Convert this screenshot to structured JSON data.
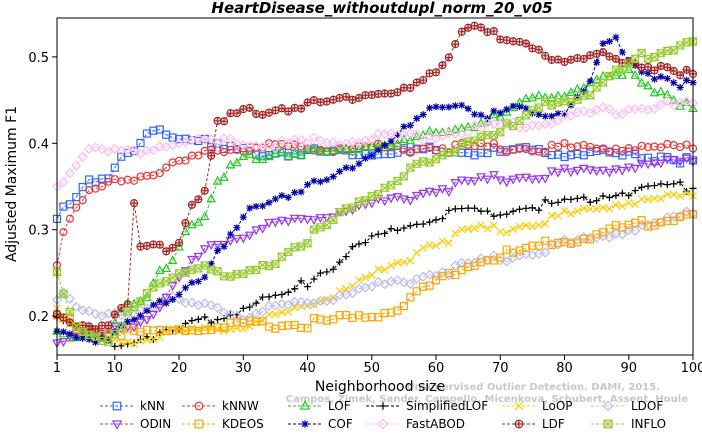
{
  "chart_data": {
    "type": "line",
    "title": "HeartDisease_withoutdupl_norm_20_v05",
    "xlabel": "Neighborhood size",
    "ylabel": "Adjusted Maximum F1",
    "xlim": [
      1,
      100
    ],
    "ylim": [
      0.155,
      0.545
    ],
    "xticks": [
      "1",
      "10",
      "20",
      "30",
      "40",
      "50",
      "60",
      "70",
      "80",
      "90",
      "100"
    ],
    "yticks": [
      "0.2",
      "0.3",
      "0.4",
      "0.5"
    ],
    "watermark": [
      "Campos, Zimek, Sander, Campello, Micenkova, Schubert, Assent, Houle",
      "Unsupervised Outlier Detection. DAMI, 2015."
    ],
    "series": [
      {
        "name": "kNN",
        "color": "#3366ff",
        "marker": "square",
        "anchors": [
          [
            1,
            0.31
          ],
          [
            2,
            0.325
          ],
          [
            3,
            0.33
          ],
          [
            5,
            0.35
          ],
          [
            6,
            0.36
          ],
          [
            8,
            0.36
          ],
          [
            10,
            0.37
          ],
          [
            11,
            0.38
          ],
          [
            13,
            0.39
          ],
          [
            15,
            0.41
          ],
          [
            18,
            0.415
          ],
          [
            20,
            0.41
          ],
          [
            22,
            0.405
          ],
          [
            24,
            0.41
          ],
          [
            25,
            0.395
          ],
          [
            30,
            0.39
          ],
          [
            40,
            0.39
          ],
          [
            50,
            0.39
          ],
          [
            60,
            0.39
          ],
          [
            70,
            0.39
          ],
          [
            80,
            0.39
          ],
          [
            90,
            0.385
          ],
          [
            95,
            0.385
          ],
          [
            100,
            0.38
          ]
        ]
      },
      {
        "name": "kNNW",
        "color": "#ee3333",
        "marker": "circle",
        "anchors": [
          [
            1,
            0.26
          ],
          [
            2,
            0.3
          ],
          [
            4,
            0.325
          ],
          [
            6,
            0.34
          ],
          [
            8,
            0.35
          ],
          [
            10,
            0.355
          ],
          [
            14,
            0.365
          ],
          [
            18,
            0.37
          ],
          [
            22,
            0.38
          ],
          [
            25,
            0.39
          ],
          [
            28,
            0.395
          ],
          [
            40,
            0.395
          ],
          [
            60,
            0.395
          ],
          [
            80,
            0.395
          ],
          [
            100,
            0.395
          ]
        ]
      },
      {
        "name": "LOF",
        "color": "#22cc22",
        "marker": "triangle",
        "anchors": [
          [
            1,
            0.18
          ],
          [
            3,
            0.175
          ],
          [
            5,
            0.18
          ],
          [
            8,
            0.18
          ],
          [
            10,
            0.19
          ],
          [
            12,
            0.21
          ],
          [
            15,
            0.22
          ],
          [
            17,
            0.25
          ],
          [
            19,
            0.27
          ],
          [
            21,
            0.3
          ],
          [
            24,
            0.32
          ],
          [
            26,
            0.35
          ],
          [
            28,
            0.37
          ],
          [
            30,
            0.38
          ],
          [
            35,
            0.39
          ],
          [
            40,
            0.39
          ],
          [
            45,
            0.39
          ],
          [
            50,
            0.4
          ],
          [
            55,
            0.4
          ],
          [
            60,
            0.41
          ],
          [
            65,
            0.42
          ],
          [
            70,
            0.43
          ],
          [
            75,
            0.45
          ],
          [
            80,
            0.46
          ],
          [
            85,
            0.47
          ],
          [
            90,
            0.48
          ],
          [
            95,
            0.46
          ],
          [
            100,
            0.44
          ]
        ]
      },
      {
        "name": "SimplifiedLOF",
        "color": "#000000",
        "marker": "plus",
        "anchors": [
          [
            1,
            0.2
          ],
          [
            3,
            0.19
          ],
          [
            5,
            0.18
          ],
          [
            8,
            0.175
          ],
          [
            10,
            0.17
          ],
          [
            14,
            0.175
          ],
          [
            18,
            0.18
          ],
          [
            22,
            0.19
          ],
          [
            26,
            0.2
          ],
          [
            30,
            0.21
          ],
          [
            34,
            0.22
          ],
          [
            38,
            0.23
          ],
          [
            42,
            0.25
          ],
          [
            46,
            0.27
          ],
          [
            50,
            0.29
          ],
          [
            54,
            0.3
          ],
          [
            58,
            0.31
          ],
          [
            62,
            0.32
          ],
          [
            66,
            0.32
          ],
          [
            70,
            0.32
          ],
          [
            74,
            0.325
          ],
          [
            78,
            0.33
          ],
          [
            82,
            0.335
          ],
          [
            86,
            0.34
          ],
          [
            90,
            0.345
          ],
          [
            95,
            0.35
          ],
          [
            100,
            0.35
          ]
        ]
      },
      {
        "name": "LoOP",
        "color": "#ffcc00",
        "marker": "x",
        "anchors": [
          [
            1,
            0.21
          ],
          [
            3,
            0.19
          ],
          [
            6,
            0.18
          ],
          [
            10,
            0.17
          ],
          [
            14,
            0.175
          ],
          [
            18,
            0.18
          ],
          [
            22,
            0.18
          ],
          [
            26,
            0.185
          ],
          [
            30,
            0.19
          ],
          [
            36,
            0.2
          ],
          [
            42,
            0.22
          ],
          [
            48,
            0.24
          ],
          [
            54,
            0.26
          ],
          [
            58,
            0.28
          ],
          [
            62,
            0.29
          ],
          [
            66,
            0.3
          ],
          [
            70,
            0.3
          ],
          [
            76,
            0.31
          ],
          [
            82,
            0.32
          ],
          [
            88,
            0.33
          ],
          [
            94,
            0.335
          ],
          [
            100,
            0.34
          ]
        ]
      },
      {
        "name": "LDOF",
        "color": "#bbbbee",
        "marker": "diamond",
        "anchors": [
          [
            1,
            0.22
          ],
          [
            2,
            0.23
          ],
          [
            4,
            0.21
          ],
          [
            6,
            0.2
          ],
          [
            10,
            0.2
          ],
          [
            14,
            0.21
          ],
          [
            18,
            0.22
          ],
          [
            22,
            0.21
          ],
          [
            26,
            0.21
          ],
          [
            30,
            0.2
          ],
          [
            36,
            0.21
          ],
          [
            42,
            0.22
          ],
          [
            48,
            0.23
          ],
          [
            54,
            0.24
          ],
          [
            60,
            0.25
          ],
          [
            66,
            0.26
          ],
          [
            72,
            0.27
          ],
          [
            78,
            0.28
          ],
          [
            84,
            0.29
          ],
          [
            90,
            0.3
          ],
          [
            96,
            0.31
          ],
          [
            100,
            0.32
          ]
        ]
      },
      {
        "name": "ODIN",
        "color": "#9933ee",
        "marker": "invtriangle",
        "anchors": [
          [
            1,
            0.17
          ],
          [
            4,
            0.18
          ],
          [
            8,
            0.18
          ],
          [
            12,
            0.19
          ],
          [
            15,
            0.2
          ],
          [
            18,
            0.22
          ],
          [
            20,
            0.24
          ],
          [
            22,
            0.26
          ],
          [
            25,
            0.28
          ],
          [
            28,
            0.29
          ],
          [
            32,
            0.3
          ],
          [
            38,
            0.31
          ],
          [
            44,
            0.32
          ],
          [
            50,
            0.33
          ],
          [
            56,
            0.34
          ],
          [
            62,
            0.35
          ],
          [
            70,
            0.36
          ],
          [
            78,
            0.365
          ],
          [
            86,
            0.37
          ],
          [
            92,
            0.375
          ],
          [
            100,
            0.38
          ]
        ]
      },
      {
        "name": "KDEOS",
        "color": "#ffa500",
        "marker": "square",
        "anchors": [
          [
            1,
            0.2
          ],
          [
            4,
            0.19
          ],
          [
            8,
            0.18
          ],
          [
            12,
            0.18
          ],
          [
            16,
            0.18
          ],
          [
            20,
            0.185
          ],
          [
            26,
            0.185
          ],
          [
            32,
            0.19
          ],
          [
            38,
            0.19
          ],
          [
            44,
            0.195
          ],
          [
            50,
            0.2
          ],
          [
            54,
            0.21
          ],
          [
            58,
            0.23
          ],
          [
            62,
            0.25
          ],
          [
            66,
            0.26
          ],
          [
            70,
            0.27
          ],
          [
            76,
            0.28
          ],
          [
            82,
            0.29
          ],
          [
            88,
            0.3
          ],
          [
            94,
            0.31
          ],
          [
            100,
            0.32
          ]
        ]
      },
      {
        "name": "COF",
        "color": "#0000aa",
        "marker": "star",
        "anchors": [
          [
            1,
            0.18
          ],
          [
            3,
            0.18
          ],
          [
            5,
            0.175
          ],
          [
            8,
            0.175
          ],
          [
            10,
            0.18
          ],
          [
            12,
            0.19
          ],
          [
            14,
            0.2
          ],
          [
            16,
            0.21
          ],
          [
            18,
            0.22
          ],
          [
            20,
            0.23
          ],
          [
            22,
            0.24
          ],
          [
            24,
            0.25
          ],
          [
            26,
            0.27
          ],
          [
            28,
            0.29
          ],
          [
            30,
            0.31
          ],
          [
            32,
            0.33
          ],
          [
            36,
            0.34
          ],
          [
            40,
            0.35
          ],
          [
            44,
            0.36
          ],
          [
            48,
            0.38
          ],
          [
            52,
            0.4
          ],
          [
            56,
            0.42
          ],
          [
            60,
            0.44
          ],
          [
            64,
            0.445
          ],
          [
            68,
            0.43
          ],
          [
            72,
            0.44
          ],
          [
            76,
            0.43
          ],
          [
            80,
            0.44
          ],
          [
            84,
            0.47
          ],
          [
            86,
            0.51
          ],
          [
            88,
            0.52
          ],
          [
            90,
            0.49
          ],
          [
            94,
            0.48
          ],
          [
            98,
            0.47
          ],
          [
            100,
            0.47
          ]
        ]
      },
      {
        "name": "FastABOD",
        "color": "#ffbbee",
        "marker": "diamond",
        "anchors": [
          [
            1,
            0.35
          ],
          [
            3,
            0.37
          ],
          [
            5,
            0.39
          ],
          [
            8,
            0.39
          ],
          [
            12,
            0.39
          ],
          [
            16,
            0.395
          ],
          [
            20,
            0.4
          ],
          [
            24,
            0.4
          ],
          [
            30,
            0.4
          ],
          [
            40,
            0.4
          ],
          [
            50,
            0.405
          ],
          [
            60,
            0.41
          ],
          [
            70,
            0.42
          ],
          [
            80,
            0.43
          ],
          [
            90,
            0.44
          ],
          [
            100,
            0.445
          ]
        ]
      },
      {
        "name": "LDF",
        "color": "#aa2222",
        "marker": "circleplus",
        "anchors": [
          [
            1,
            0.2
          ],
          [
            4,
            0.19
          ],
          [
            8,
            0.19
          ],
          [
            10,
            0.2
          ],
          [
            12,
            0.21
          ],
          [
            13,
            0.33
          ],
          [
            14,
            0.28
          ],
          [
            16,
            0.28
          ],
          [
            18,
            0.28
          ],
          [
            20,
            0.29
          ],
          [
            22,
            0.33
          ],
          [
            24,
            0.35
          ],
          [
            26,
            0.42
          ],
          [
            28,
            0.43
          ],
          [
            30,
            0.435
          ],
          [
            35,
            0.44
          ],
          [
            40,
            0.445
          ],
          [
            45,
            0.45
          ],
          [
            50,
            0.46
          ],
          [
            55,
            0.46
          ],
          [
            58,
            0.47
          ],
          [
            60,
            0.48
          ],
          [
            62,
            0.5
          ],
          [
            64,
            0.53
          ],
          [
            66,
            0.54
          ],
          [
            68,
            0.53
          ],
          [
            70,
            0.52
          ],
          [
            74,
            0.51
          ],
          [
            78,
            0.5
          ],
          [
            82,
            0.5
          ],
          [
            86,
            0.5
          ],
          [
            90,
            0.49
          ],
          [
            95,
            0.49
          ],
          [
            100,
            0.48
          ]
        ]
      },
      {
        "name": "INFLO",
        "color": "#99cc33",
        "marker": "hourglass",
        "anchors": [
          [
            1,
            0.25
          ],
          [
            3,
            0.2
          ],
          [
            6,
            0.18
          ],
          [
            9,
            0.17
          ],
          [
            12,
            0.2
          ],
          [
            16,
            0.23
          ],
          [
            20,
            0.25
          ],
          [
            24,
            0.26
          ],
          [
            28,
            0.24
          ],
          [
            32,
            0.25
          ],
          [
            36,
            0.27
          ],
          [
            40,
            0.29
          ],
          [
            44,
            0.31
          ],
          [
            48,
            0.33
          ],
          [
            52,
            0.35
          ],
          [
            56,
            0.37
          ],
          [
            60,
            0.38
          ],
          [
            64,
            0.4
          ],
          [
            68,
            0.41
          ],
          [
            72,
            0.42
          ],
          [
            76,
            0.44
          ],
          [
            80,
            0.45
          ],
          [
            84,
            0.46
          ],
          [
            88,
            0.48
          ],
          [
            92,
            0.5
          ],
          [
            96,
            0.51
          ],
          [
            100,
            0.52
          ]
        ]
      }
    ]
  }
}
